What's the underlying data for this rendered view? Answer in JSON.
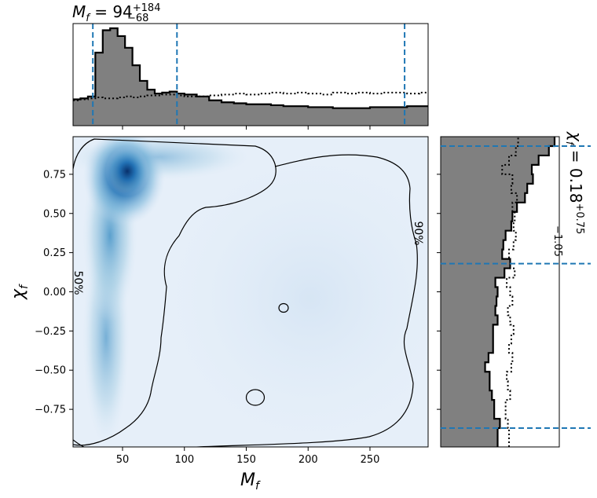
{
  "chart_data": [
    {
      "type": "area",
      "panel": "top-marginal",
      "title_main": "M",
      "title_sub": "f",
      "title_value": " = 94",
      "title_sup": "+184",
      "title_low": "−68",
      "xlim": [
        10,
        297
      ],
      "histogram_solid": {
        "edges": [
          10,
          16,
          22,
          28,
          34,
          40,
          46,
          52,
          58,
          64,
          70,
          76,
          82,
          88,
          94,
          100,
          110,
          120,
          130,
          140,
          150,
          160,
          170,
          180,
          190,
          200,
          210,
          220,
          230,
          240,
          250,
          260,
          270,
          280,
          290,
          297
        ],
        "values": [
          0.27,
          0.28,
          0.3,
          0.75,
          0.98,
          1.0,
          0.92,
          0.8,
          0.62,
          0.46,
          0.37,
          0.33,
          0.34,
          0.35,
          0.33,
          0.32,
          0.3,
          0.26,
          0.24,
          0.23,
          0.22,
          0.22,
          0.21,
          0.2,
          0.2,
          0.19,
          0.19,
          0.18,
          0.18,
          0.18,
          0.19,
          0.19,
          0.19,
          0.2,
          0.2
        ]
      },
      "histogram_dotted": {
        "values": [
          0.26,
          0.27,
          0.28,
          0.29,
          0.28,
          0.28,
          0.29,
          0.3,
          0.29,
          0.3,
          0.31,
          0.31,
          0.32,
          0.32,
          0.31,
          0.3,
          0.3,
          0.31,
          0.32,
          0.33,
          0.32,
          0.33,
          0.34,
          0.33,
          0.34,
          0.33,
          0.32,
          0.34,
          0.33,
          0.34,
          0.33,
          0.34,
          0.34,
          0.33,
          0.34
        ]
      },
      "quantile_lines": [
        26,
        94,
        278
      ]
    },
    {
      "type": "heatmap",
      "panel": "joint",
      "xlabel_main": "M",
      "xlabel_sub": "f",
      "ylabel_main": "χ",
      "ylabel_sub": "f",
      "xlim": [
        10,
        297
      ],
      "ylim": [
        -0.99,
        0.99
      ],
      "xticks": [
        "50",
        "100",
        "150",
        "200",
        "250"
      ],
      "xtick_values": [
        50,
        100,
        150,
        200,
        250
      ],
      "yticks": [
        "0.75",
        "0.50",
        "0.25",
        "0.00",
        "−0.25",
        "−0.50",
        "−0.75"
      ],
      "ytick_values": [
        0.75,
        0.5,
        0.25,
        0.0,
        -0.25,
        -0.5,
        -0.75
      ],
      "density_peak": {
        "x": 58,
        "y": 0.75
      },
      "contour_labels": [
        "90%",
        "50%"
      ],
      "colormap": "Blues"
    },
    {
      "type": "area",
      "panel": "right-marginal",
      "title_main": "χ",
      "title_sub": "f",
      "title_value": " = 0.18",
      "title_sup": "+0.75",
      "title_low": "−1.05",
      "ylim": [
        -0.99,
        0.99
      ],
      "histogram_solid": {
        "edges": [
          -0.99,
          -0.93,
          -0.87,
          -0.81,
          -0.75,
          -0.69,
          -0.63,
          -0.57,
          -0.51,
          -0.45,
          -0.39,
          -0.33,
          -0.27,
          -0.21,
          -0.15,
          -0.09,
          -0.03,
          0.03,
          0.09,
          0.15,
          0.21,
          0.27,
          0.33,
          0.39,
          0.45,
          0.51,
          0.57,
          0.63,
          0.69,
          0.75,
          0.81,
          0.87,
          0.93,
          0.99
        ],
        "values": [
          0.5,
          0.5,
          0.52,
          0.47,
          0.47,
          0.45,
          0.43,
          0.43,
          0.39,
          0.42,
          0.46,
          0.46,
          0.46,
          0.5,
          0.48,
          0.49,
          0.5,
          0.48,
          0.56,
          0.61,
          0.54,
          0.55,
          0.57,
          0.62,
          0.63,
          0.67,
          0.74,
          0.76,
          0.81,
          0.8,
          0.86,
          0.95,
          1.0
        ]
      },
      "histogram_dotted": {
        "values": [
          0.6,
          0.6,
          0.59,
          0.57,
          0.57,
          0.61,
          0.59,
          0.58,
          0.62,
          0.63,
          0.6,
          0.62,
          0.64,
          0.61,
          0.59,
          0.63,
          0.61,
          0.58,
          0.65,
          0.61,
          0.6,
          0.64,
          0.66,
          0.64,
          0.65,
          0.63,
          0.67,
          0.62,
          0.63,
          0.54,
          0.6,
          0.66,
          0.68
        ]
      },
      "quantile_lines": [
        -0.87,
        0.18,
        0.93
      ]
    }
  ],
  "colors": {
    "hist_fill": "#808080",
    "quantile_line": "#1f77b4",
    "contour": "#000000",
    "density_high": "#08306b",
    "density_low": "#f7fbff"
  }
}
